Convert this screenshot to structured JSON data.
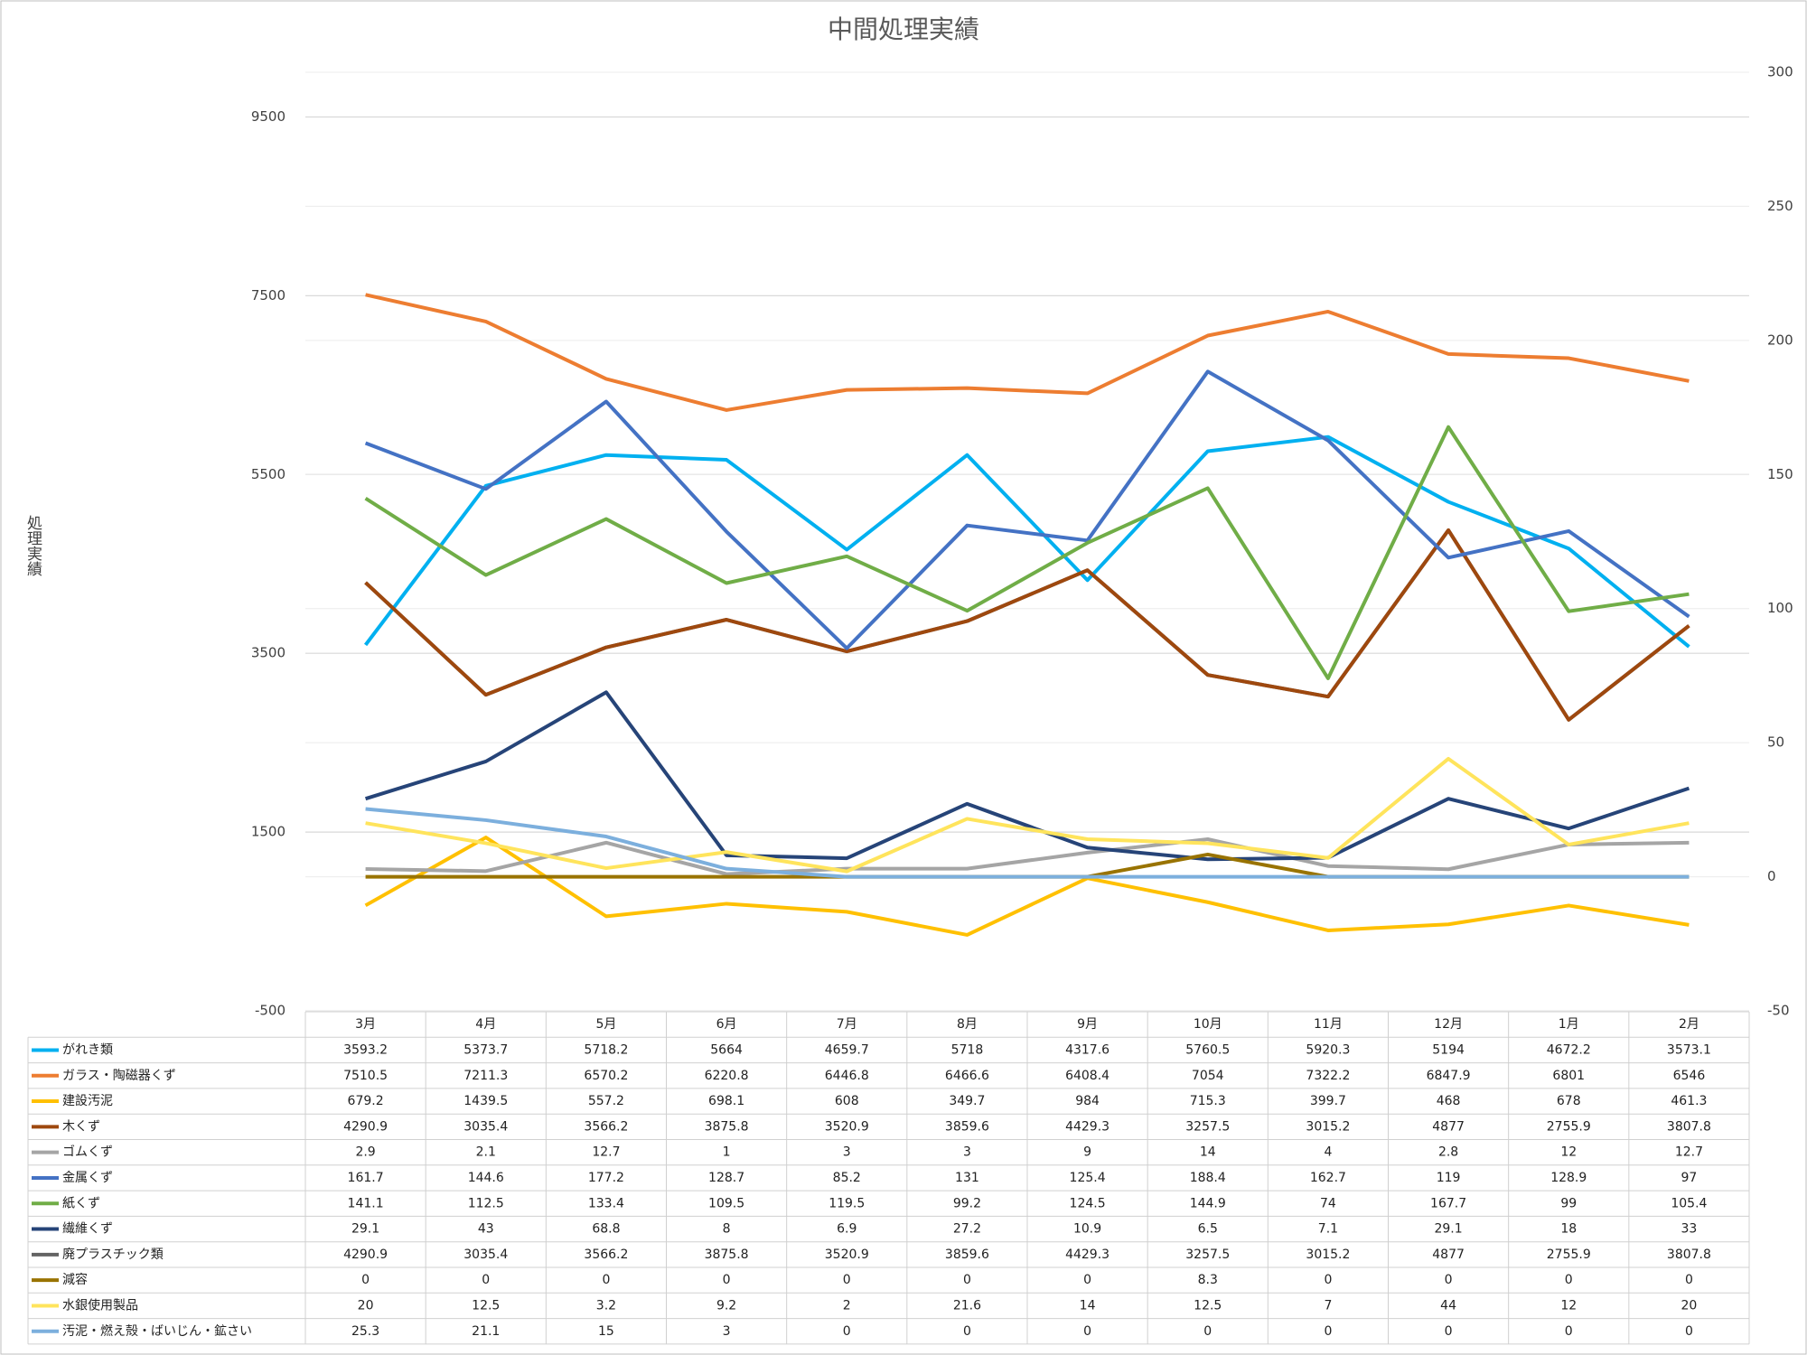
{
  "chart_data": {
    "type": "line",
    "title": "中間処理実績",
    "y_label": "処理実績",
    "categories": [
      "3月",
      "4月",
      "5月",
      "6月",
      "7月",
      "8月",
      "9月",
      "10月",
      "11月",
      "12月",
      "1月",
      "2月"
    ],
    "ylim": [
      -500,
      10000
    ],
    "yticks": [
      -500,
      1500,
      3500,
      5500,
      7500,
      9500
    ],
    "y2lim": [
      -50,
      300
    ],
    "y2ticks": [
      -50,
      0,
      50,
      100,
      150,
      200,
      250,
      300
    ],
    "grid": true,
    "legend": "bottom-table",
    "series": [
      {
        "name": "がれき類",
        "color": "#00b0f0",
        "values": [
          3593.2,
          5373.7,
          5718.2,
          5664,
          4659.7,
          5718,
          4317.6,
          5760.5,
          5920.3,
          5194,
          4672.2,
          3573.1
        ]
      },
      {
        "name": "ガラス・陶磁器くず",
        "color": "#ed7d31",
        "values": [
          7510.5,
          7211.3,
          6570.2,
          6220.8,
          6446.8,
          6466.6,
          6408.4,
          7054,
          7322.2,
          6847.9,
          6801,
          6546
        ]
      },
      {
        "name": "建設汚泥",
        "color": "#ffc000",
        "values": [
          679.2,
          1439.5,
          557.2,
          698.1,
          608,
          349.7,
          984,
          715.3,
          399.7,
          468,
          678,
          461.3
        ]
      },
      {
        "name": "木くず",
        "color": "#9e480e",
        "values": [
          4290.9,
          3035.4,
          3566.2,
          3875.8,
          3520.9,
          3859.6,
          4429.3,
          3257.5,
          3015.2,
          4877,
          2755.9,
          3807.8
        ]
      },
      {
        "name": "ゴムくず",
        "color": "#a5a5a5",
        "axis": "y2",
        "values": [
          2.9,
          2.1,
          12.7,
          1,
          3,
          3,
          9,
          14,
          4,
          2.8,
          12,
          12.7
        ]
      },
      {
        "name": "金属くず",
        "color": "#4472c4",
        "axis": "y2",
        "values": [
          161.7,
          144.6,
          177.2,
          128.7,
          85.2,
          131,
          125.4,
          188.4,
          162.7,
          119,
          128.9,
          97
        ]
      },
      {
        "name": "紙くず",
        "color": "#70ad47",
        "axis": "y2",
        "values": [
          141.1,
          112.5,
          133.4,
          109.5,
          119.5,
          99.2,
          124.5,
          144.9,
          74,
          167.7,
          99,
          105.4
        ]
      },
      {
        "name": "繊維くず",
        "color": "#264478",
        "axis": "y2",
        "values": [
          29.1,
          43,
          68.8,
          8,
          6.9,
          27.2,
          10.9,
          6.5,
          7.1,
          29.1,
          18,
          33
        ]
      },
      {
        "name": "廃プラスチック類",
        "color": "#636363",
        "values": [
          4290.9,
          3035.4,
          3566.2,
          3875.8,
          3520.9,
          3859.6,
          4429.3,
          3257.5,
          3015.2,
          4877,
          2755.9,
          3807.8
        ]
      },
      {
        "name": "減容",
        "color": "#997300",
        "axis": "y2",
        "values": [
          0,
          0,
          0,
          0,
          0,
          0,
          0,
          8.3,
          0,
          0,
          0,
          0
        ]
      },
      {
        "name": "水銀使用製品",
        "color": "#ffe45c",
        "axis": "y2",
        "values": [
          20,
          12.5,
          3.2,
          9.2,
          2,
          21.6,
          14,
          12.5,
          7,
          44,
          12,
          20
        ]
      },
      {
        "name": "汚泥・燃え殻・ばいじん・鉱さい",
        "color": "#7cafdd",
        "axis": "y2",
        "values": [
          25.3,
          21.1,
          15,
          3,
          0,
          0,
          0,
          0,
          0,
          0,
          0,
          0
        ]
      }
    ]
  }
}
